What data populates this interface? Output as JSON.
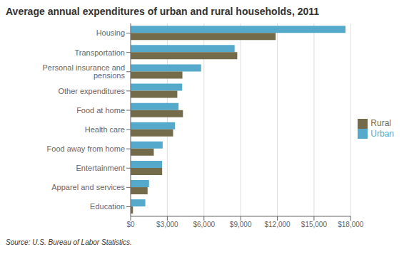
{
  "chart_data": {
    "type": "bar",
    "orientation": "horizontal",
    "title": "Average annual expenditures of urban and rural households, 2011",
    "annotations": [
      "Source: U.S. Bureau of Labor Statistics."
    ],
    "categories": [
      "Housing",
      "Transportation",
      "Personal insurance and pensions",
      "Other expenditures",
      "Food at home",
      "Health care",
      "Food away from home",
      "Entertainment",
      "Apparel and services",
      "Education"
    ],
    "series": [
      {
        "name": "Urban",
        "color": "#55AACC",
        "values": [
          17576,
          8507,
          5765,
          4219,
          3921,
          3631,
          2619,
          2572,
          1505,
          1202
        ]
      },
      {
        "name": "Rural",
        "color": "#736B4A",
        "values": [
          11865,
          8720,
          4235,
          3818,
          4280,
          3474,
          1895,
          2579,
          1387,
          191
        ]
      }
    ],
    "xlim": [
      0,
      18000
    ],
    "xticks": [
      {
        "value": 0,
        "label": "$0"
      },
      {
        "value": 3000,
        "label": "$3,000"
      },
      {
        "value": 6000,
        "label": "$6,000"
      },
      {
        "value": 9000,
        "label": "$9,000"
      },
      {
        "value": 12000,
        "label": "$12,000"
      },
      {
        "value": 15000,
        "label": "$15,000"
      },
      {
        "value": 18000,
        "label": "$18,000"
      }
    ],
    "grid": true,
    "legend": "right"
  }
}
